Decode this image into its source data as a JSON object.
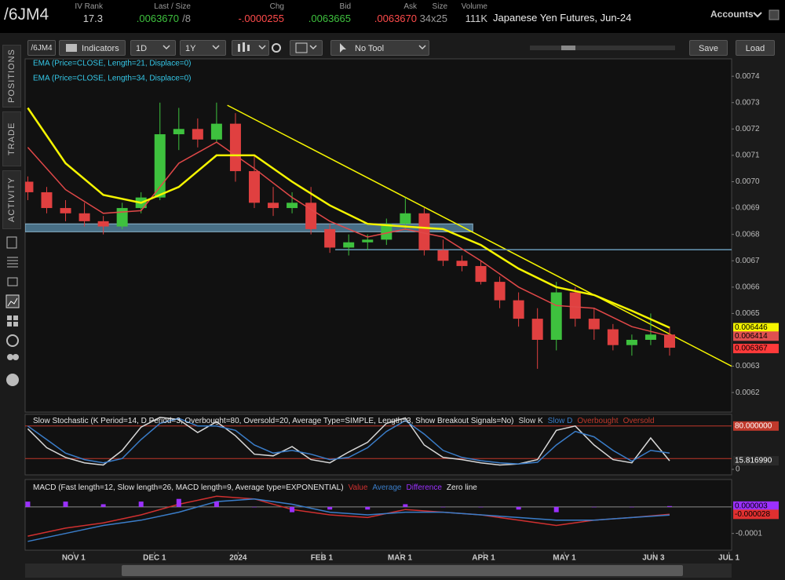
{
  "header": {
    "symbol": "/6JM4",
    "fields": [
      {
        "label": "IV Rank",
        "value": "17.3",
        "color": "#cfcfcf",
        "right": 131
      },
      {
        "label": "Last / Size",
        "value": ".0063670",
        "extra": "/8",
        "color": "#3ec13e",
        "right": 243
      },
      {
        "label": "Chg",
        "value": "-.0000255",
        "color": "#ff4b4b",
        "right": 362
      },
      {
        "label": "Bid",
        "value": ".0063665",
        "color": "#3ec13e",
        "right": 447
      },
      {
        "label": "Ask",
        "value": ".0063670",
        "color": "#ff4b4b",
        "right": 531
      },
      {
        "label": "Size",
        "value": "34x25",
        "color": "#9a9a9a",
        "right": 570
      },
      {
        "label": "Volume",
        "value": "111K",
        "color": "#cfcfcf",
        "right": 621
      }
    ],
    "description": "Japanese Yen Futures, Jun-24",
    "accounts": "Accounts"
  },
  "toolbar": {
    "symbol": "/6JM4",
    "indicators": "Indicators",
    "aggregation": "1D",
    "range": "1Y",
    "tool": "No Tool",
    "save": "Save",
    "load": "Load"
  },
  "sidebar": {
    "tabs": [
      "POSITIONS",
      "TRADE",
      "ACTIVITY"
    ]
  },
  "chart_data": [
    {
      "type": "candlestick",
      "up_color": "#3ec13e",
      "down_color": "#e04040",
      "legend_color": "#35c8e8",
      "x": [
        14,
        21,
        28,
        35,
        42,
        49,
        56,
        63,
        70,
        77,
        84,
        91,
        98,
        105,
        112,
        119,
        126,
        133,
        140,
        147,
        154,
        161,
        168,
        175,
        182,
        189,
        196,
        203,
        210,
        217,
        224,
        231,
        238,
        245,
        252
      ],
      "open": [
        0.007,
        0.00696,
        0.0069,
        0.00688,
        0.00685,
        0.00683,
        0.0069,
        0.00694,
        0.00718,
        0.0072,
        0.00716,
        0.00722,
        0.00704,
        0.00692,
        0.0069,
        0.00692,
        0.00682,
        0.00675,
        0.00677,
        0.00678,
        0.00684,
        0.00688,
        0.00674,
        0.0067,
        0.00668,
        0.00662,
        0.00655,
        0.00648,
        0.0064,
        0.00658,
        0.00648,
        0.00644,
        0.00638,
        0.0064,
        0.00642
      ],
      "high": [
        0.00702,
        0.00698,
        0.00693,
        0.00692,
        0.00687,
        0.00692,
        0.00696,
        0.0073,
        0.00728,
        0.00724,
        0.0073,
        0.00726,
        0.0071,
        0.00698,
        0.00696,
        0.00698,
        0.00684,
        0.0068,
        0.0068,
        0.00686,
        0.00694,
        0.0069,
        0.00678,
        0.00672,
        0.0067,
        0.00664,
        0.00658,
        0.00652,
        0.00662,
        0.0066,
        0.00652,
        0.00646,
        0.00642,
        0.0065,
        0.00645
      ],
      "low": [
        0.00693,
        0.00688,
        0.00685,
        0.00683,
        0.0068,
        0.00682,
        0.00688,
        0.00693,
        0.00712,
        0.00713,
        0.00715,
        0.007,
        0.0069,
        0.00687,
        0.00688,
        0.0068,
        0.00673,
        0.00672,
        0.00674,
        0.00676,
        0.00682,
        0.00672,
        0.00668,
        0.00666,
        0.00661,
        0.00652,
        0.00645,
        0.00629,
        0.00636,
        0.00645,
        0.0064,
        0.00636,
        0.00634,
        0.00638,
        0.00634
      ],
      "close": [
        0.00696,
        0.0069,
        0.00688,
        0.00685,
        0.00683,
        0.0069,
        0.00694,
        0.00718,
        0.0072,
        0.00716,
        0.00722,
        0.00704,
        0.00692,
        0.0069,
        0.00692,
        0.00682,
        0.00675,
        0.00677,
        0.00678,
        0.00684,
        0.00688,
        0.00674,
        0.0067,
        0.00668,
        0.00662,
        0.00655,
        0.00648,
        0.0064,
        0.00658,
        0.00648,
        0.00644,
        0.00638,
        0.0064,
        0.00642,
        0.00637
      ],
      "series": [
        {
          "name": "EMA (Price=CLOSE, Length=21, Displace=0)",
          "color": "#e04848",
          "x": [
            14,
            28,
            42,
            56,
            70,
            84,
            98,
            112,
            126,
            140,
            154,
            168,
            182,
            196,
            210,
            224,
            238,
            252
          ],
          "values": [
            0.00713,
            0.00697,
            0.00688,
            0.00689,
            0.00707,
            0.00715,
            0.00705,
            0.00694,
            0.00685,
            0.00679,
            0.00682,
            0.00679,
            0.0067,
            0.0066,
            0.00653,
            0.00652,
            0.00645,
            0.006414
          ]
        },
        {
          "name": "EMA (Price=CLOSE, Length=34, Displace=0)",
          "color": "#f5f500",
          "x": [
            14,
            28,
            42,
            56,
            70,
            84,
            98,
            112,
            126,
            140,
            154,
            168,
            182,
            196,
            210,
            224,
            238,
            252
          ],
          "values": [
            0.00728,
            0.00707,
            0.00695,
            0.00692,
            0.00698,
            0.0071,
            0.0071,
            0.007,
            0.00691,
            0.00684,
            0.00683,
            0.00682,
            0.00676,
            0.00667,
            0.0066,
            0.00657,
            0.00651,
            0.006446
          ]
        }
      ],
      "lines": [
        {
          "x": [
            88,
            275
          ],
          "values": [
            0.00729,
            0.0063
          ],
          "color": "#f5f500"
        },
        {
          "x": [
            128,
            275
          ],
          "values": [
            0.006742,
            0.006742
          ],
          "color": "#6a9ab8"
        }
      ],
      "band": {
        "x": [
          13,
          179
        ],
        "range": [
          0.00681,
          0.00684
        ],
        "color": "#5b8fae"
      },
      "markers": [
        {
          "value": 0.006446,
          "color": "#f5f500",
          "text_color": "#000"
        },
        {
          "value": 0.006414,
          "color": "#e05050",
          "text_color": "#000"
        },
        {
          "value": 0.006367,
          "color": "#ff3a3a",
          "text_color": "#000"
        }
      ],
      "xlim": [
        13,
        275
      ],
      "ylim": [
        0.006126,
        0.007466
      ],
      "yticks": [
        0.0074,
        0.0073,
        0.0072,
        0.0071,
        {
          "value": 0.007,
          "label": "0.0070"
        },
        0.0069,
        0.0068,
        0.0067,
        0.0066,
        0.0065,
        0.0063,
        0.0062
      ],
      "xticks": [
        {
          "value": 31,
          "label": "NOV 1"
        },
        {
          "value": 61,
          "label": "DEC 1"
        },
        {
          "value": 92,
          "label": "2024"
        },
        {
          "value": 123,
          "label": "FEB 1"
        },
        {
          "value": 152,
          "label": "MAR 1"
        },
        {
          "value": 183,
          "label": "APR 1"
        },
        {
          "value": 213,
          "label": "MAY 1"
        },
        {
          "value": 246,
          "label": "JUN 3"
        },
        {
          "value": 274,
          "label": "JUL 1"
        }
      ]
    },
    {
      "type": "line",
      "title": "Slow Stochastic (K Period=14, D Period=3, Overbought=80, Oversold=20, Average Type=SIMPLE, Length=3, Show Breakout Signals=No)",
      "series": [
        {
          "name": "Slow K",
          "color": "#d8d8d8",
          "x": [
            14,
            21,
            28,
            35,
            42,
            49,
            56,
            63,
            70,
            77,
            84,
            91,
            98,
            105,
            112,
            119,
            126,
            133,
            140,
            147,
            154,
            161,
            168,
            175,
            182,
            189,
            196,
            203,
            210,
            217,
            224,
            231,
            238,
            245,
            252
          ],
          "values": [
            75,
            40,
            22,
            12,
            8,
            35,
            78,
            96,
            92,
            68,
            88,
            62,
            28,
            25,
            42,
            18,
            12,
            32,
            50,
            85,
            95,
            45,
            22,
            18,
            12,
            8,
            10,
            18,
            72,
            80,
            45,
            18,
            12,
            58,
            15.81699
          ]
        },
        {
          "name": "Slow D",
          "color": "#3a7dc9",
          "x": [
            14,
            21,
            28,
            35,
            42,
            49,
            56,
            63,
            70,
            77,
            84,
            91,
            98,
            105,
            112,
            119,
            126,
            133,
            140,
            147,
            154,
            161,
            168,
            175,
            182,
            189,
            196,
            203,
            210,
            217,
            224,
            231,
            238,
            245,
            252
          ],
          "values": [
            80,
            55,
            30,
            18,
            12,
            20,
            55,
            85,
            94,
            80,
            80,
            72,
            45,
            30,
            35,
            28,
            18,
            22,
            40,
            70,
            90,
            65,
            35,
            22,
            16,
            12,
            10,
            13,
            45,
            70,
            60,
            35,
            15,
            35,
            30
          ]
        }
      ],
      "levels": [
        {
          "name": "Overbought",
          "value": 80,
          "color": "#c0392b"
        },
        {
          "name": "Oversold",
          "value": 20,
          "color": "#c0392b"
        }
      ],
      "markers": [
        {
          "value": 80,
          "label": "80.000000",
          "color": "#c0392b",
          "text_color": "#fff"
        },
        {
          "value": 15.81699,
          "label": "15.816990",
          "color": "#2a2a2a",
          "text_color": "#fff"
        }
      ],
      "xlim": [
        13,
        275
      ],
      "ylim": [
        0,
        100
      ],
      "yticks": [
        0
      ]
    },
    {
      "type": "line",
      "title": "MACD (Fast length=12, Slow length=26, MACD length=9, Average type=EXPONENTIAL)",
      "series": [
        {
          "name": "Value",
          "color": "#d03030",
          "x": [
            14,
            28,
            42,
            56,
            70,
            84,
            98,
            112,
            126,
            140,
            154,
            168,
            182,
            196,
            210,
            224,
            238,
            252
          ],
          "values": [
            -0.00011,
            -8e-05,
            -6e-05,
            -3e-05,
            1e-05,
            4e-05,
            3e-05,
            -1e-05,
            -3e-05,
            -4e-05,
            -1e-05,
            -2e-05,
            -3e-05,
            -5e-05,
            -7e-05,
            -5e-05,
            -4e-05,
            -2.8e-05
          ]
        },
        {
          "name": "Average",
          "color": "#3a7dc9",
          "x": [
            14,
            28,
            42,
            56,
            70,
            84,
            98,
            112,
            126,
            140,
            154,
            168,
            182,
            196,
            210,
            224,
            238,
            252
          ],
          "values": [
            -0.00013,
            -0.0001,
            -7e-05,
            -5e-05,
            -2e-05,
            2e-05,
            3e-05,
            1e-05,
            -2e-05,
            -3e-05,
            -2e-05,
            -2e-05,
            -3e-05,
            -4e-05,
            -5e-05,
            -5e-05,
            -4e-05,
            -3.1e-05
          ]
        },
        {
          "name": "Difference",
          "color": "#9b30ff",
          "style": "histogram",
          "x": [
            14,
            28,
            42,
            56,
            70,
            84,
            98,
            112,
            126,
            140,
            154,
            168,
            182,
            196,
            210,
            224,
            238,
            252
          ],
          "values": [
            2e-05,
            2e-05,
            1e-05,
            2e-05,
            3e-05,
            2e-05,
            0,
            -2e-05,
            -1e-05,
            -1e-05,
            1e-05,
            0,
            0,
            -1e-05,
            -2e-05,
            0,
            0,
            3e-06
          ]
        }
      ],
      "zero_line": {
        "name": "Zero line",
        "color": "#8a8a8a"
      },
      "markers": [
        {
          "value": 3e-06,
          "color": "#9b30ff",
          "text_color": "#000"
        },
        {
          "value": -2.8e-05,
          "color": "#e03030",
          "text_color": "#000"
        }
      ],
      "xlim": [
        13,
        275
      ],
      "ylim": [
        -0.00016,
        0.0001
      ],
      "yticks": [
        -0.0001
      ]
    }
  ]
}
